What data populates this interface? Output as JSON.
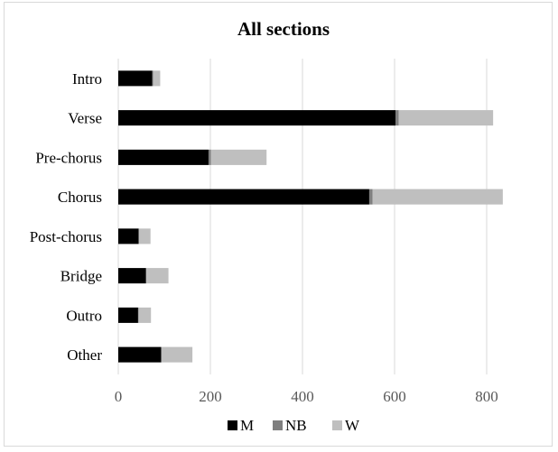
{
  "chart_data": {
    "type": "bar",
    "orientation": "horizontal",
    "stacked": true,
    "title": "All sections",
    "xlabel": "",
    "ylabel": "",
    "categories": [
      "Intro",
      "Verse",
      "Pre-chorus",
      "Chorus",
      "Post-chorus",
      "Bridge",
      "Outro",
      "Other"
    ],
    "series": [
      {
        "name": "M",
        "values": [
          74,
          602,
          196,
          545,
          44,
          60,
          43,
          93
        ],
        "color": "#000000"
      },
      {
        "name": "NB",
        "values": [
          2,
          7,
          5,
          7,
          1,
          1,
          1,
          1
        ],
        "color": "#7f7f7f"
      },
      {
        "name": "W",
        "values": [
          15,
          205,
          121,
          283,
          25,
          48,
          27,
          67
        ],
        "color": "#bfbfbf"
      }
    ],
    "xlim": [
      0,
      900
    ],
    "xticks": [
      0,
      200,
      400,
      600,
      800
    ],
    "grid": true,
    "legend_position": "bottom"
  }
}
